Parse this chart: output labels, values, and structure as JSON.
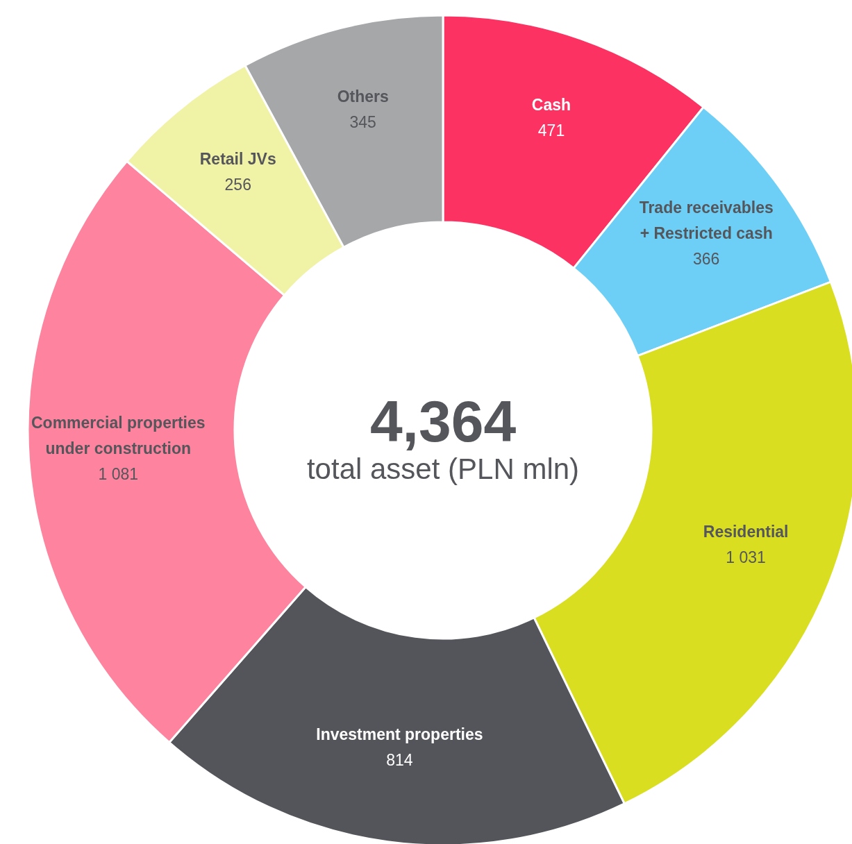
{
  "chart_data": {
    "type": "donut",
    "categories": [
      "Cash",
      "Trade receivables\n+ Restricted cash",
      "Residential",
      "Investment properties",
      "Commercial properties\nunder construction",
      "Retail JVs",
      "Others"
    ],
    "values": [
      471,
      366,
      1031,
      814,
      1081,
      256,
      345
    ],
    "value_labels": [
      "471",
      "366",
      "1 031",
      "814",
      "1 081",
      "256",
      "345"
    ],
    "colors": [
      "#fc3262",
      "#6dcff6",
      "#d9de21",
      "#54555a",
      "#fe839e",
      "#f0f2a6",
      "#a6a7a9"
    ],
    "annotations": [
      "4,364",
      "total asset (PLN mln)"
    ]
  }
}
